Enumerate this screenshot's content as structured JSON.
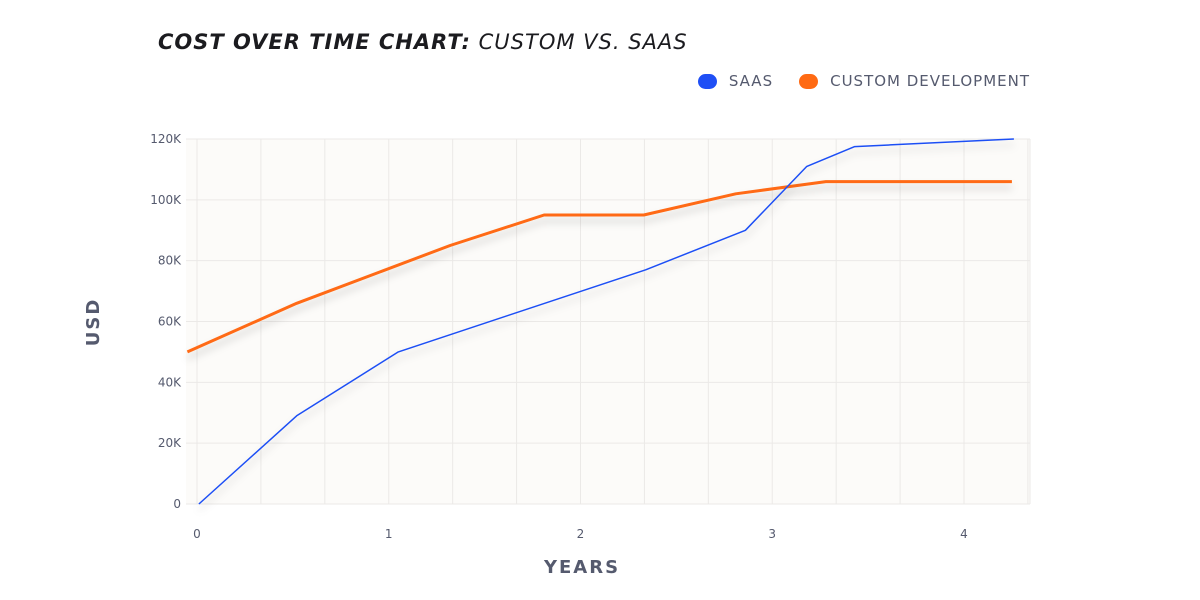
{
  "chart_data": {
    "type": "line",
    "title_bold": "COST OVER TIME CHART:",
    "title_rest": " CUSTOM VS. SAAS",
    "xlabel": "YEARS",
    "ylabel": "USD",
    "xlim": [
      -0.05,
      4.35
    ],
    "ylim": [
      0,
      120000
    ],
    "xticks": [
      0,
      1,
      2,
      3,
      4
    ],
    "xtick_labels": [
      "0",
      "1",
      "2",
      "3",
      "4"
    ],
    "yticks": [
      0,
      20000,
      40000,
      60000,
      80000,
      100000,
      120000
    ],
    "ytick_labels": [
      "0",
      "20K",
      "40K",
      "60K",
      "80K",
      "100K",
      "120K"
    ],
    "grid": true,
    "legend_position": "top-right",
    "series": [
      {
        "name": "SAAS",
        "color": "#1f4ff5",
        "x": [
          0.01,
          0.52,
          1.05,
          2.34,
          2.86,
          3.18,
          3.43,
          4.26
        ],
        "y": [
          0,
          29000,
          50000,
          77000,
          90000,
          111000,
          117500,
          120000
        ]
      },
      {
        "name": "CUSTOM DEVELOPMENT",
        "color": "#ff6a13",
        "x": [
          -0.05,
          0.52,
          1.32,
          1.81,
          2.33,
          2.81,
          3.28,
          4.25
        ],
        "y": [
          50000,
          66000,
          85000,
          95000,
          95000,
          102000,
          106000,
          106000
        ]
      }
    ]
  }
}
